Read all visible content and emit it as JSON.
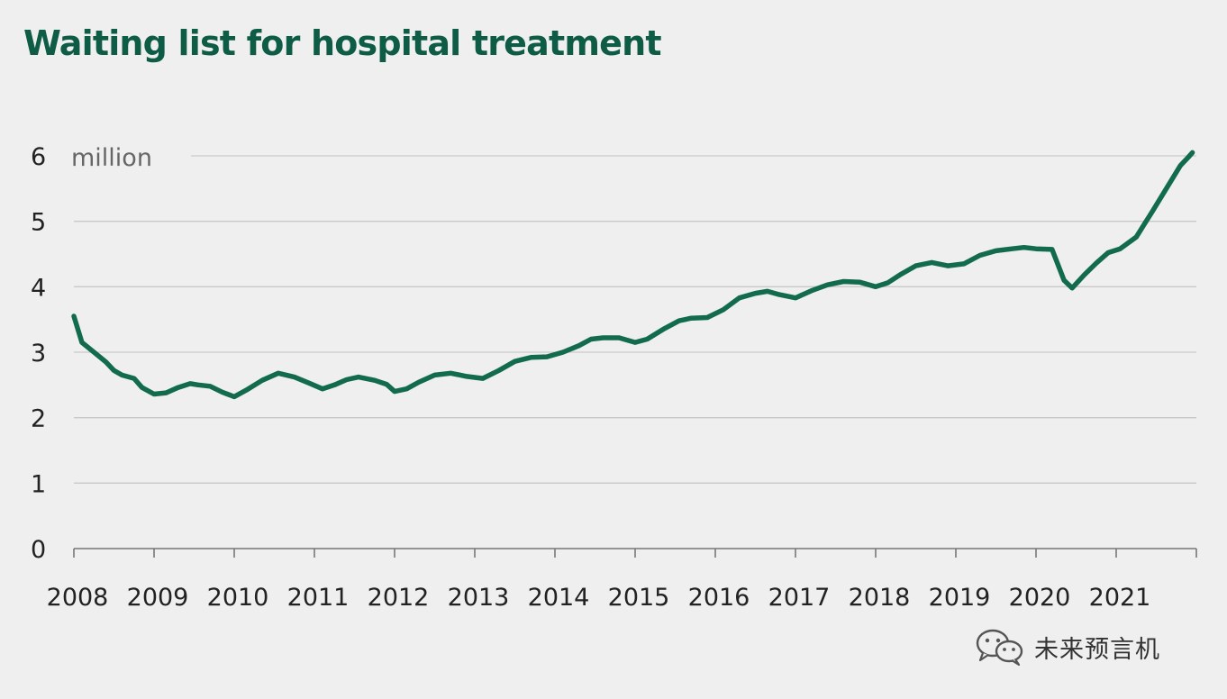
{
  "chart_data": {
    "type": "line",
    "title": "Waiting list for hospital treatment",
    "ylabel": "million",
    "xlabel": "",
    "ylim": [
      0,
      6
    ],
    "xlim": [
      2008,
      2022
    ],
    "yticks": [
      0,
      1,
      2,
      3,
      4,
      5,
      6
    ],
    "ytick_labels": [
      "0",
      "1",
      "2",
      "3",
      "4",
      "5",
      "6"
    ],
    "xticks": [
      2008,
      2009,
      2010,
      2011,
      2012,
      2013,
      2014,
      2015,
      2016,
      2017,
      2018,
      2019,
      2020,
      2021
    ],
    "xtick_labels": [
      "2008",
      "2009",
      "2010",
      "2011",
      "2012",
      "2013",
      "2014",
      "2015",
      "2016",
      "2017",
      "2018",
      "2019",
      "2020",
      "2021"
    ],
    "grid": true,
    "series": [
      {
        "name": "Waiting list",
        "color": "#136b4e",
        "x": [
          2008.0,
          2008.1,
          2008.25,
          2008.4,
          2008.5,
          2008.6,
          2008.75,
          2008.85,
          2009.0,
          2009.15,
          2009.3,
          2009.45,
          2009.55,
          2009.7,
          2009.85,
          2010.0,
          2010.15,
          2010.35,
          2010.55,
          2010.75,
          2010.95,
          2011.1,
          2011.25,
          2011.4,
          2011.55,
          2011.75,
          2011.9,
          2012.0,
          2012.15,
          2012.3,
          2012.5,
          2012.7,
          2012.9,
          2013.1,
          2013.3,
          2013.5,
          2013.7,
          2013.9,
          2014.1,
          2014.3,
          2014.45,
          2014.6,
          2014.8,
          2015.0,
          2015.15,
          2015.35,
          2015.55,
          2015.7,
          2015.9,
          2016.1,
          2016.3,
          2016.5,
          2016.65,
          2016.8,
          2017.0,
          2017.2,
          2017.4,
          2017.6,
          2017.8,
          2018.0,
          2018.15,
          2018.3,
          2018.5,
          2018.7,
          2018.9,
          2019.1,
          2019.3,
          2019.5,
          2019.7,
          2019.85,
          2020.0,
          2020.2,
          2020.35,
          2020.45,
          2020.6,
          2020.75,
          2020.9,
          2021.05,
          2021.25,
          2021.45,
          2021.65,
          2021.8,
          2021.9,
          2021.95
        ],
        "values": [
          3.55,
          3.15,
          3.0,
          2.85,
          2.72,
          2.65,
          2.6,
          2.46,
          2.36,
          2.38,
          2.46,
          2.52,
          2.5,
          2.48,
          2.39,
          2.32,
          2.42,
          2.57,
          2.68,
          2.62,
          2.52,
          2.44,
          2.5,
          2.58,
          2.62,
          2.57,
          2.51,
          2.4,
          2.44,
          2.54,
          2.65,
          2.68,
          2.63,
          2.6,
          2.72,
          2.86,
          2.92,
          2.93,
          3.0,
          3.1,
          3.2,
          3.22,
          3.22,
          3.15,
          3.2,
          3.35,
          3.48,
          3.52,
          3.53,
          3.65,
          3.83,
          3.9,
          3.93,
          3.88,
          3.83,
          3.94,
          4.03,
          4.08,
          4.07,
          4.0,
          4.06,
          4.18,
          4.32,
          4.37,
          4.32,
          4.35,
          4.48,
          4.55,
          4.58,
          4.6,
          4.58,
          4.57,
          4.1,
          3.98,
          4.18,
          4.36,
          4.52,
          4.58,
          4.76,
          5.15,
          5.55,
          5.85,
          5.98,
          6.05
        ]
      }
    ]
  },
  "watermark": {
    "text": "未来预言机",
    "icon": "wechat-icon"
  }
}
